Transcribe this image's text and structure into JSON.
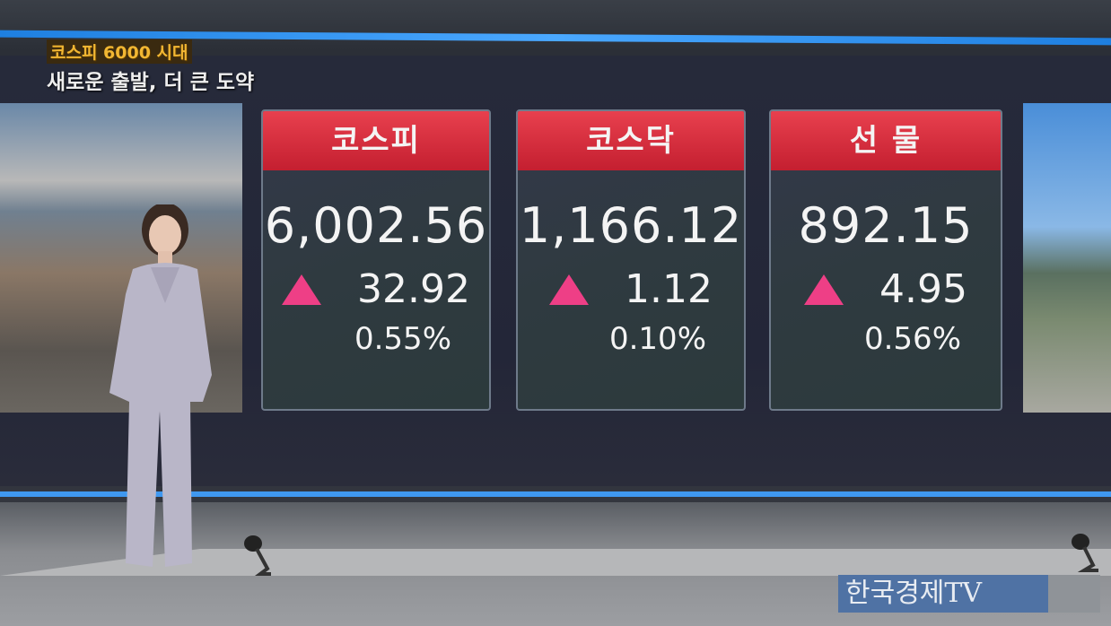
{
  "caption": {
    "headline": "코스피 6000 시대",
    "subheadline": "새로운 출발, 더 큰 도약"
  },
  "panels": [
    {
      "title": "코스피",
      "value": "6,002.56",
      "change": "32.92",
      "percent": "0.55%",
      "direction": "up"
    },
    {
      "title": "코스닥",
      "value": "1,166.12",
      "change": "1.12",
      "percent": "0.10%",
      "direction": "up"
    },
    {
      "title": "선 물",
      "value": "892.15",
      "change": "4.95",
      "percent": "0.56%",
      "direction": "up"
    }
  ],
  "colors": {
    "header_red": "#d42a3a",
    "up_triangle": "#ee3f86",
    "accent_blue": "#3f98f0",
    "logo_bg": "#4f72a4"
  },
  "logo": "한국경제TV"
}
